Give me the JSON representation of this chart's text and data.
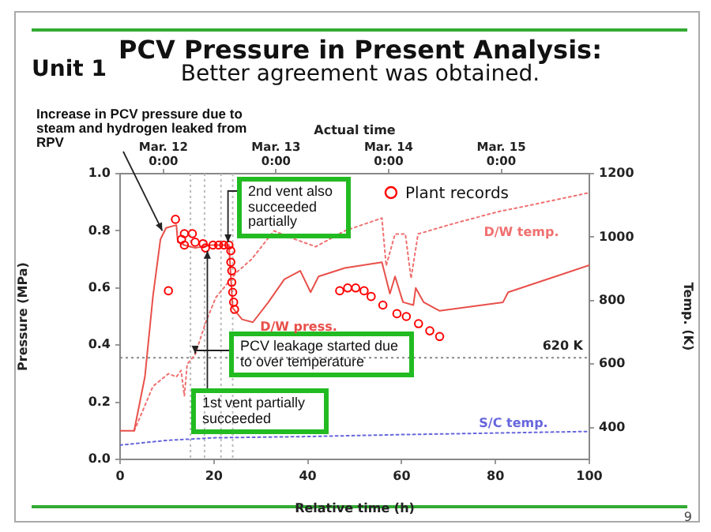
{
  "chart_data": {
    "type": "line",
    "title": "PCV Pressure in Present Analysis:",
    "subtitle": "Better agreement was obtained.",
    "xlabel": "Relative time (h)",
    "ylabel": "Pressure (MPa)",
    "y2label": "Temp. (K)",
    "x2label": "Actual time",
    "xlim": [
      0,
      100
    ],
    "xticks": [
      0,
      20,
      40,
      60,
      80,
      100
    ],
    "ylim": [
      0,
      1
    ],
    "yticks": [
      {
        "value": 0,
        "label": "0.0"
      },
      {
        "value": 0.2,
        "label": "0.2"
      },
      {
        "value": 0.4,
        "label": "0.4"
      },
      {
        "value": 0.6,
        "label": "0.6"
      },
      {
        "value": 0.8,
        "label": "0.8"
      },
      {
        "value": 1,
        "label": "1.0"
      }
    ],
    "y2lim": [
      300,
      1200
    ],
    "y2ticks": [
      400,
      600,
      800,
      1000,
      1200
    ],
    "x2lim": [
      "--03-11T14:46",
      "--03-15T18:46"
    ],
    "x2ticks": [
      {
        "value": "--03-12T00:00",
        "label": "Mar. 12\n0:00"
      },
      {
        "value": "--03-13T00:00",
        "label": "Mar. 13\n0:00"
      },
      {
        "value": "--03-14T00:00",
        "label": "Mar. 14\n0:00"
      },
      {
        "value": "--03-15T00:00",
        "label": "Mar. 15\n0:00"
      }
    ],
    "series": [
      {
        "color": "#e8504a",
        "line_style": "solid",
        "x": [
          0,
          3,
          5.3,
          7,
          8.6,
          9.8,
          12,
          12.3,
          13.7,
          16,
          19.4,
          23.2,
          24,
          26,
          28.3,
          31.6,
          35,
          38.4,
          40.6,
          42.3,
          47.9,
          55.8,
          57.5,
          58.6,
          60.3,
          62.5,
          63,
          64.7,
          68.1,
          81.6,
          82.7,
          92.8,
          100
        ],
        "values": [
          0.1,
          0.1,
          0.29,
          0.57,
          0.77,
          0.81,
          0.82,
          0.76,
          0.75,
          0.74,
          0.75,
          0.75,
          0.53,
          0.49,
          0.48,
          0.55,
          0.63,
          0.66,
          0.585,
          0.64,
          0.67,
          0.69,
          0.58,
          0.64,
          0.55,
          0.54,
          0.6,
          0.55,
          0.52,
          0.55,
          0.585,
          0.64,
          0.68
        ]
      },
      {
        "axis": "y2",
        "color": "#f07070",
        "line_style": "dotted",
        "x": [
          3,
          3.6,
          7,
          10.3,
          12,
          13,
          13.7,
          14.3,
          16,
          18.2,
          20.4,
          24.9,
          28,
          32.8,
          36,
          41.7,
          47.9,
          55.8,
          56.7,
          58.6,
          60.8,
          62,
          63.5,
          70.4,
          80.5,
          87.2,
          100
        ],
        "values": [
          390,
          410,
          530,
          570,
          560,
          580,
          500,
          600,
          630,
          730,
          810,
          890,
          930,
          1020,
          1000,
          970,
          1020,
          1060,
          910,
          1010,
          1010,
          870,
          1010,
          1040,
          1080,
          1100,
          1140
        ]
      },
      {
        "axis": "y2",
        "color": "#6666dd",
        "line_style": "dotted",
        "x": [
          0,
          10,
          20,
          40,
          60,
          80,
          100
        ],
        "values": [
          345,
          360,
          368,
          372,
          378,
          383,
          388
        ]
      },
      {
        "type": "scatter",
        "name": "Plant records",
        "color": "#ff0000",
        "marker": "circle",
        "x": [
          10.3,
          11.8,
          13.1,
          13.7,
          13.7,
          15.4,
          16,
          17.7,
          18.2,
          19.8,
          21,
          22.1,
          23.2,
          23.6,
          23.6,
          23.8,
          23.8,
          24,
          24.2,
          24.4,
          46.8,
          48.5,
          50.2,
          52,
          53.5,
          56,
          59,
          61,
          63.6,
          66,
          68.1
        ],
        "values": [
          0.59,
          0.84,
          0.77,
          0.79,
          0.75,
          0.79,
          0.76,
          0.755,
          0.74,
          0.75,
          0.75,
          0.75,
          0.75,
          0.73,
          0.69,
          0.66,
          0.62,
          0.585,
          0.55,
          0.525,
          0.59,
          0.6,
          0.6,
          0.59,
          0.57,
          0.54,
          0.51,
          0.5,
          0.475,
          0.45,
          0.43
        ]
      }
    ],
    "ref_lines": [
      {
        "axis": "y2",
        "value": 620,
        "label": "620 K",
        "color": "#888888",
        "line_style": "dotted"
      },
      {
        "axis": "x",
        "value": 15,
        "color": "#bbbbbb",
        "line_style": "dotted"
      },
      {
        "axis": "x",
        "value": 18,
        "color": "#bbbbbb",
        "line_style": "dotted"
      },
      {
        "axis": "x",
        "value": 21.5,
        "color": "#bbbbbb",
        "line_style": "dotted"
      },
      {
        "axis": "x",
        "value": 24,
        "color": "#bbbbbb",
        "line_style": "dotted"
      }
    ],
    "annotations": [
      "Unit 1",
      {
        "text": "Increase in PCV pressure due to steam and hydrogen leaked from RPV",
        "x": 9,
        "y": 0.8
      },
      {
        "text": "2nd vent also succeeded partially",
        "x": 23,
        "y": 0.76
      },
      {
        "text": "PCV leakage started due to over temperature",
        "x": 16,
        "y": 0.37
      },
      {
        "text": "1st vent partially succeeded",
        "x": 18.6,
        "y": 0.73
      },
      "D/W press.",
      "D/W temp.",
      "S/C temp.",
      "9"
    ],
    "legend": "top right"
  }
}
